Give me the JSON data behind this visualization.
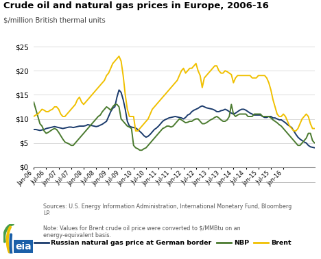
{
  "title": "Crude oil and natural gas prices in Europe, 2006-16",
  "ylabel": "$/million British thermal units",
  "ylim": [
    0,
    25
  ],
  "yticks": [
    0,
    5,
    10,
    15,
    20,
    25
  ],
  "source_text": "Sources: U.S. Energy Information Administration, International Monetary Fund, Bloomberg\nLP.",
  "note_text": "Note: Values for Brent crude oil price were converted to $/MMBtu on an\nenergy-equivalent basis.",
  "legend_labels": [
    "Russian natural gas price at German border",
    "NBP",
    "Brent"
  ],
  "colors": {
    "russian": "#1a3a6b",
    "nbp": "#4a7a2f",
    "brent": "#f0c000"
  },
  "russian": [
    7.8,
    7.8,
    7.7,
    7.6,
    7.7,
    7.8,
    8.0,
    8.1,
    8.2,
    8.3,
    8.4,
    8.3,
    8.2,
    8.1,
    8.0,
    8.1,
    8.2,
    8.3,
    8.3,
    8.2,
    8.3,
    8.4,
    8.5,
    8.5,
    8.5,
    8.6,
    8.8,
    8.7,
    8.6,
    8.5,
    8.4,
    8.5,
    8.7,
    8.9,
    9.2,
    9.5,
    10.5,
    11.5,
    12.2,
    12.5,
    14.5,
    16.0,
    15.5,
    14.0,
    12.0,
    9.5,
    8.5,
    8.3,
    8.2,
    8.1,
    7.8,
    7.4,
    7.0,
    6.5,
    6.2,
    6.4,
    6.8,
    7.3,
    7.8,
    8.1,
    8.5,
    9.0,
    9.5,
    9.8,
    10.0,
    10.2,
    10.3,
    10.4,
    10.5,
    10.4,
    10.3,
    10.2,
    10.0,
    10.3,
    10.8,
    11.0,
    11.5,
    11.8,
    12.0,
    12.2,
    12.5,
    12.7,
    12.5,
    12.3,
    12.2,
    12.1,
    12.0,
    11.8,
    11.5,
    11.5,
    11.7,
    11.8,
    12.0,
    11.8,
    11.5,
    11.2,
    11.0,
    11.2,
    11.5,
    11.8,
    12.0,
    12.0,
    11.8,
    11.5,
    11.2,
    11.0,
    10.8,
    10.8,
    10.8,
    10.8,
    10.5,
    10.3,
    10.3,
    10.5,
    10.5,
    10.2,
    10.2,
    10.0,
    9.8,
    9.8,
    9.5,
    9.2,
    8.8,
    8.5,
    8.2,
    7.5,
    6.8,
    6.2,
    5.8,
    5.5,
    5.2,
    5.0,
    4.5,
    4.2,
    4.1,
    4.0
  ],
  "nbp": [
    13.5,
    12.0,
    10.5,
    9.0,
    8.5,
    7.5,
    7.0,
    7.2,
    7.5,
    7.8,
    8.0,
    7.8,
    7.2,
    6.5,
    5.8,
    5.2,
    5.0,
    4.8,
    4.5,
    4.5,
    5.0,
    5.5,
    6.0,
    6.5,
    7.0,
    7.5,
    8.0,
    8.5,
    9.0,
    9.5,
    10.0,
    10.5,
    10.8,
    11.5,
    12.0,
    12.5,
    12.2,
    11.8,
    12.5,
    13.0,
    13.0,
    12.5,
    10.0,
    9.5,
    9.0,
    8.5,
    8.3,
    8.0,
    4.5,
    4.0,
    3.8,
    3.5,
    3.5,
    3.8,
    4.0,
    4.5,
    5.0,
    5.5,
    6.0,
    6.5,
    7.0,
    7.5,
    8.0,
    8.2,
    8.5,
    8.5,
    8.3,
    8.5,
    9.0,
    9.5,
    10.0,
    9.8,
    9.5,
    9.2,
    9.3,
    9.5,
    9.5,
    9.8,
    10.0,
    10.0,
    9.5,
    9.0,
    9.0,
    9.2,
    9.5,
    9.8,
    10.0,
    10.3,
    10.5,
    10.2,
    9.8,
    9.5,
    9.5,
    9.8,
    10.5,
    13.0,
    11.0,
    10.5,
    10.8,
    11.0,
    11.0,
    11.0,
    11.0,
    10.5,
    10.5,
    10.5,
    11.0,
    11.0,
    11.0,
    11.0,
    10.5,
    10.5,
    10.5,
    10.5,
    10.2,
    9.8,
    9.5,
    9.2,
    8.8,
    8.5,
    8.0,
    7.5,
    7.0,
    6.5,
    6.0,
    5.5,
    5.0,
    4.5,
    4.5,
    5.0,
    5.5,
    6.0,
    7.0,
    7.0,
    5.5,
    5.0
  ],
  "brent": [
    10.5,
    10.8,
    11.0,
    11.5,
    12.0,
    11.8,
    11.5,
    11.5,
    11.8,
    12.0,
    12.5,
    12.5,
    12.0,
    11.0,
    10.5,
    10.5,
    11.0,
    11.5,
    12.0,
    12.5,
    13.0,
    14.0,
    14.5,
    13.5,
    13.0,
    13.5,
    14.0,
    14.5,
    15.0,
    15.5,
    16.0,
    16.5,
    17.0,
    17.5,
    18.0,
    19.0,
    19.5,
    20.5,
    21.5,
    22.0,
    22.5,
    23.0,
    22.0,
    19.0,
    15.0,
    12.0,
    10.5,
    10.5,
    10.5,
    7.5,
    7.5,
    8.0,
    8.5,
    9.0,
    9.5,
    10.0,
    11.0,
    12.0,
    12.5,
    13.0,
    13.5,
    14.0,
    14.5,
    15.0,
    15.5,
    16.0,
    16.5,
    17.0,
    17.5,
    18.0,
    19.0,
    20.0,
    20.5,
    19.5,
    20.0,
    20.5,
    20.5,
    21.0,
    21.5,
    20.0,
    19.0,
    16.5,
    18.5,
    19.0,
    19.5,
    20.0,
    20.5,
    21.0,
    21.0,
    20.0,
    19.5,
    19.5,
    20.0,
    19.8,
    19.5,
    19.2,
    17.5,
    18.5,
    19.0,
    19.0,
    19.0,
    19.0,
    19.0,
    19.0,
    19.0,
    18.5,
    18.5,
    18.5,
    19.0,
    19.0,
    19.0,
    19.0,
    18.5,
    17.5,
    16.0,
    14.0,
    12.5,
    11.0,
    10.5,
    10.5,
    11.0,
    10.5,
    9.5,
    8.5,
    8.0,
    7.5,
    7.5,
    8.0,
    9.0,
    10.0,
    10.5,
    11.0,
    10.5,
    9.0,
    8.0,
    8.0
  ],
  "xtick_labels": [
    "Jan-06",
    "Jul-06",
    "Jan-07",
    "Jul-07",
    "Jan-08",
    "Jul-08",
    "Jan-09",
    "Jul-09",
    "Jan-10",
    "Jul-10",
    "Jan-11",
    "Jul-11",
    "Jan-12",
    "Jul-12",
    "Jan-13",
    "Jul-13",
    "Jan-14",
    "Jul-14",
    "Jan-15",
    "Jul-15",
    "Jan-16"
  ],
  "xtick_months": [
    0,
    6,
    12,
    18,
    24,
    30,
    36,
    42,
    48,
    54,
    60,
    66,
    72,
    78,
    84,
    90,
    96,
    102,
    108,
    114,
    120
  ]
}
